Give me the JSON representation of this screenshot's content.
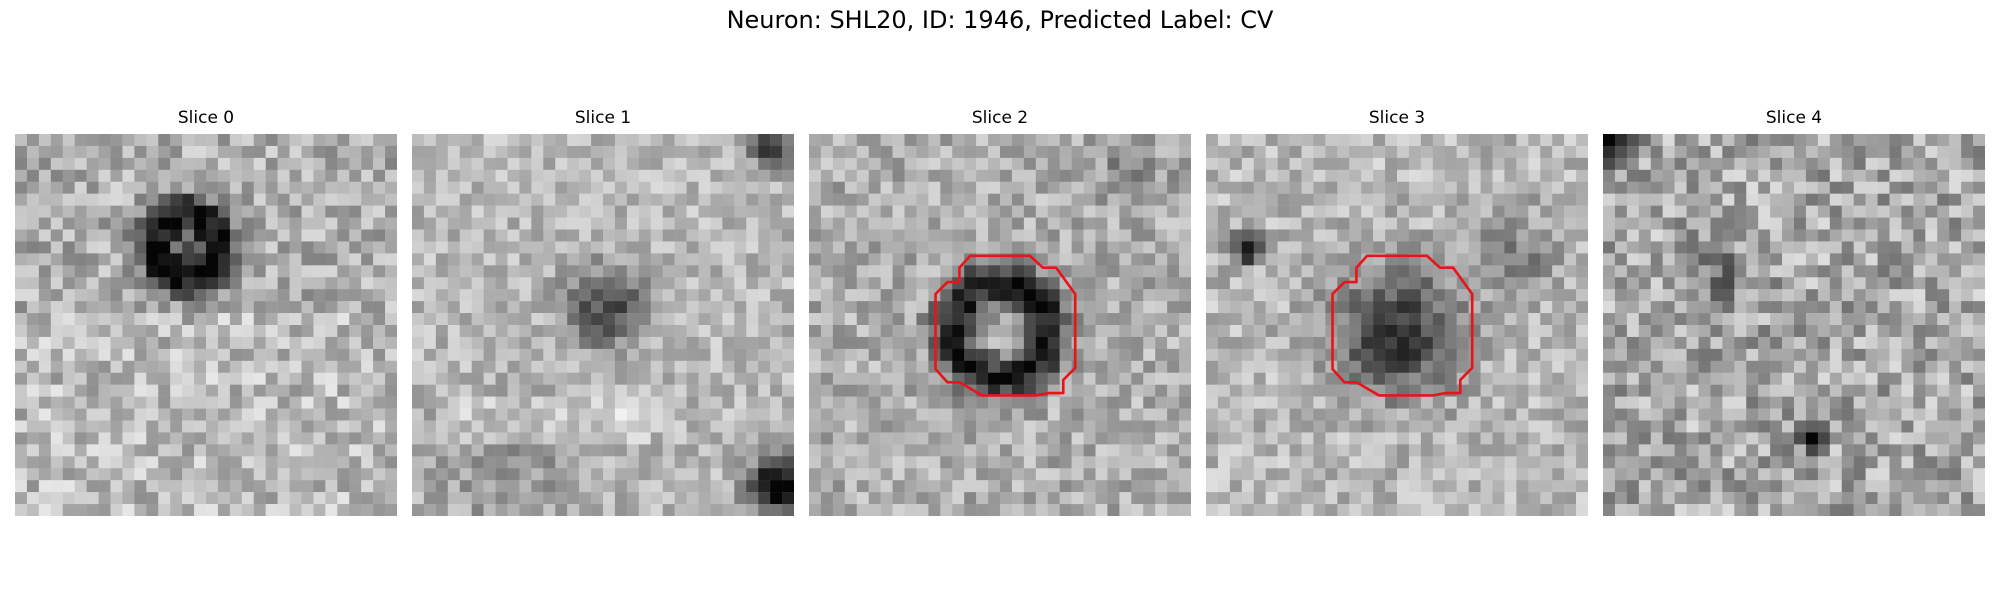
{
  "figure": {
    "title": "Neuron: SHL20, ID: 1946, Predicted Label: CV"
  },
  "panels": [
    {
      "title": "Slice 0",
      "has_roi": false
    },
    {
      "title": "Slice 1",
      "has_roi": false
    },
    {
      "title": "Slice 2",
      "has_roi": true
    },
    {
      "title": "Slice 3",
      "has_roi": true
    },
    {
      "title": "Slice 4",
      "has_roi": false
    }
  ],
  "colors": {
    "roi_outline": "#e8141c",
    "colormap": "gray"
  }
}
